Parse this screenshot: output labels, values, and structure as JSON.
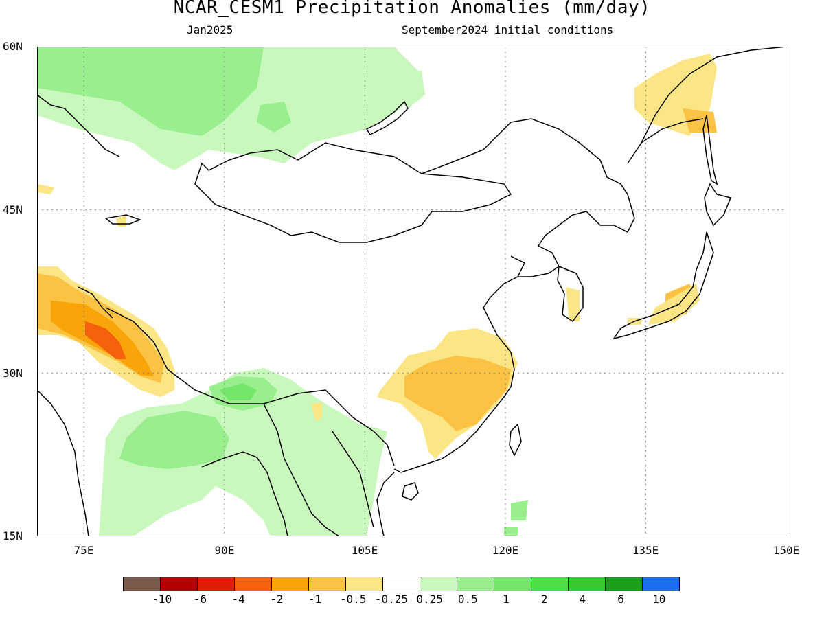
{
  "header": {
    "title": "NCAR_CESM1 Precipitation Anomalies (mm/day)",
    "valid_month": "Jan2025",
    "init_conditions": "September2024 initial conditions"
  },
  "axes": {
    "lat_labels": [
      "60N",
      "45N",
      "30N",
      "15N"
    ],
    "lon_labels": [
      "75E",
      "90E",
      "105E",
      "120E",
      "135E",
      "150E"
    ]
  },
  "colorbar": {
    "colors": [
      "#7b5a4b",
      "#b30000",
      "#e01e08",
      "#f5600a",
      "#f9a408",
      "#fbc243",
      "#fce585",
      "#ffffff",
      "#c9f8bd",
      "#99ee8d",
      "#74e66a",
      "#4ddd49",
      "#38c831",
      "#1aa01a",
      "#1e6ef0"
    ],
    "labels": [
      "-10",
      "-6",
      "-4",
      "-2",
      "-1",
      "-0.5",
      "-0.25",
      "0.25",
      "0.5",
      "1",
      "2",
      "4",
      "6",
      "10"
    ]
  },
  "map": {
    "region": "East Asia",
    "lat_range": [
      "15N",
      "60N"
    ],
    "lon_range": [
      "70E",
      "150E"
    ],
    "anomaly_regions": [
      {
        "area": "West Siberia / Kazakhstan",
        "sign": "wet",
        "range_mm_day": "0.5 to 1"
      },
      {
        "area": "Lake Baikal region",
        "sign": "wet",
        "range_mm_day": "0.25 to 1"
      },
      {
        "area": "Pakistan / Western Himalaya",
        "sign": "dry",
        "range_mm_day": "-4 to -0.5"
      },
      {
        "area": "Bangladesh / Bay of Bengal",
        "sign": "wet",
        "range_mm_day": "0.25 to 2"
      },
      {
        "area": "Indochina",
        "sign": "wet",
        "range_mm_day": "0.25 to 0.5"
      },
      {
        "area": "Southeast China",
        "sign": "dry",
        "range_mm_day": "-1 to -0.25"
      },
      {
        "area": "Japan / Korea",
        "sign": "dry",
        "range_mm_day": "-1 to -0.25"
      },
      {
        "area": "Okhotsk / Sakhalin",
        "sign": "dry",
        "range_mm_day": "-1 to -0.25"
      }
    ]
  }
}
